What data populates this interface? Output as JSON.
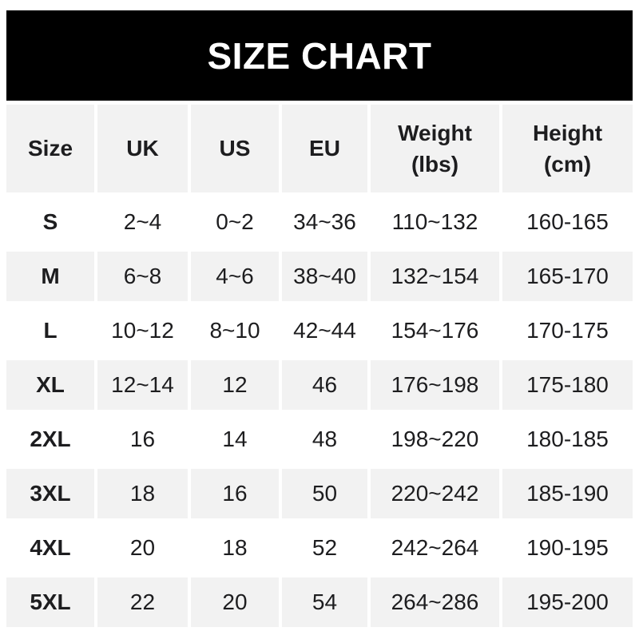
{
  "banner": {
    "title": "SIZE CHART"
  },
  "colors": {
    "banner_bg": "#000000",
    "banner_text": "#ffffff",
    "row_alt_bg": "#f2f2f2",
    "row_bg": "#ffffff",
    "text": "#1d1d1f"
  },
  "header": {
    "size": "Size",
    "uk": "UK",
    "us": "US",
    "eu": "EU",
    "weight_label": "Weight",
    "weight_unit": "(lbs)",
    "height_label": "Height",
    "height_unit": "(cm)"
  },
  "chart_data": {
    "type": "table",
    "title": "SIZE CHART",
    "columns": [
      "Size",
      "UK",
      "US",
      "EU",
      "Weight (lbs)",
      "Height (cm)"
    ],
    "rows": [
      [
        "S",
        "2~4",
        "0~2",
        "34~36",
        "110~132",
        "160-165"
      ],
      [
        "M",
        "6~8",
        "4~6",
        "38~40",
        "132~154",
        "165-170"
      ],
      [
        "L",
        "10~12",
        "8~10",
        "42~44",
        "154~176",
        "170-175"
      ],
      [
        "XL",
        "12~14",
        "12",
        "46",
        "176~198",
        "175-180"
      ],
      [
        "2XL",
        "16",
        "14",
        "48",
        "198~220",
        "180-185"
      ],
      [
        "3XL",
        "18",
        "16",
        "50",
        "220~242",
        "185-190"
      ],
      [
        "4XL",
        "20",
        "18",
        "52",
        "242~264",
        "190-195"
      ],
      [
        "5XL",
        "22",
        "20",
        "54",
        "264~286",
        "195-200"
      ]
    ]
  }
}
